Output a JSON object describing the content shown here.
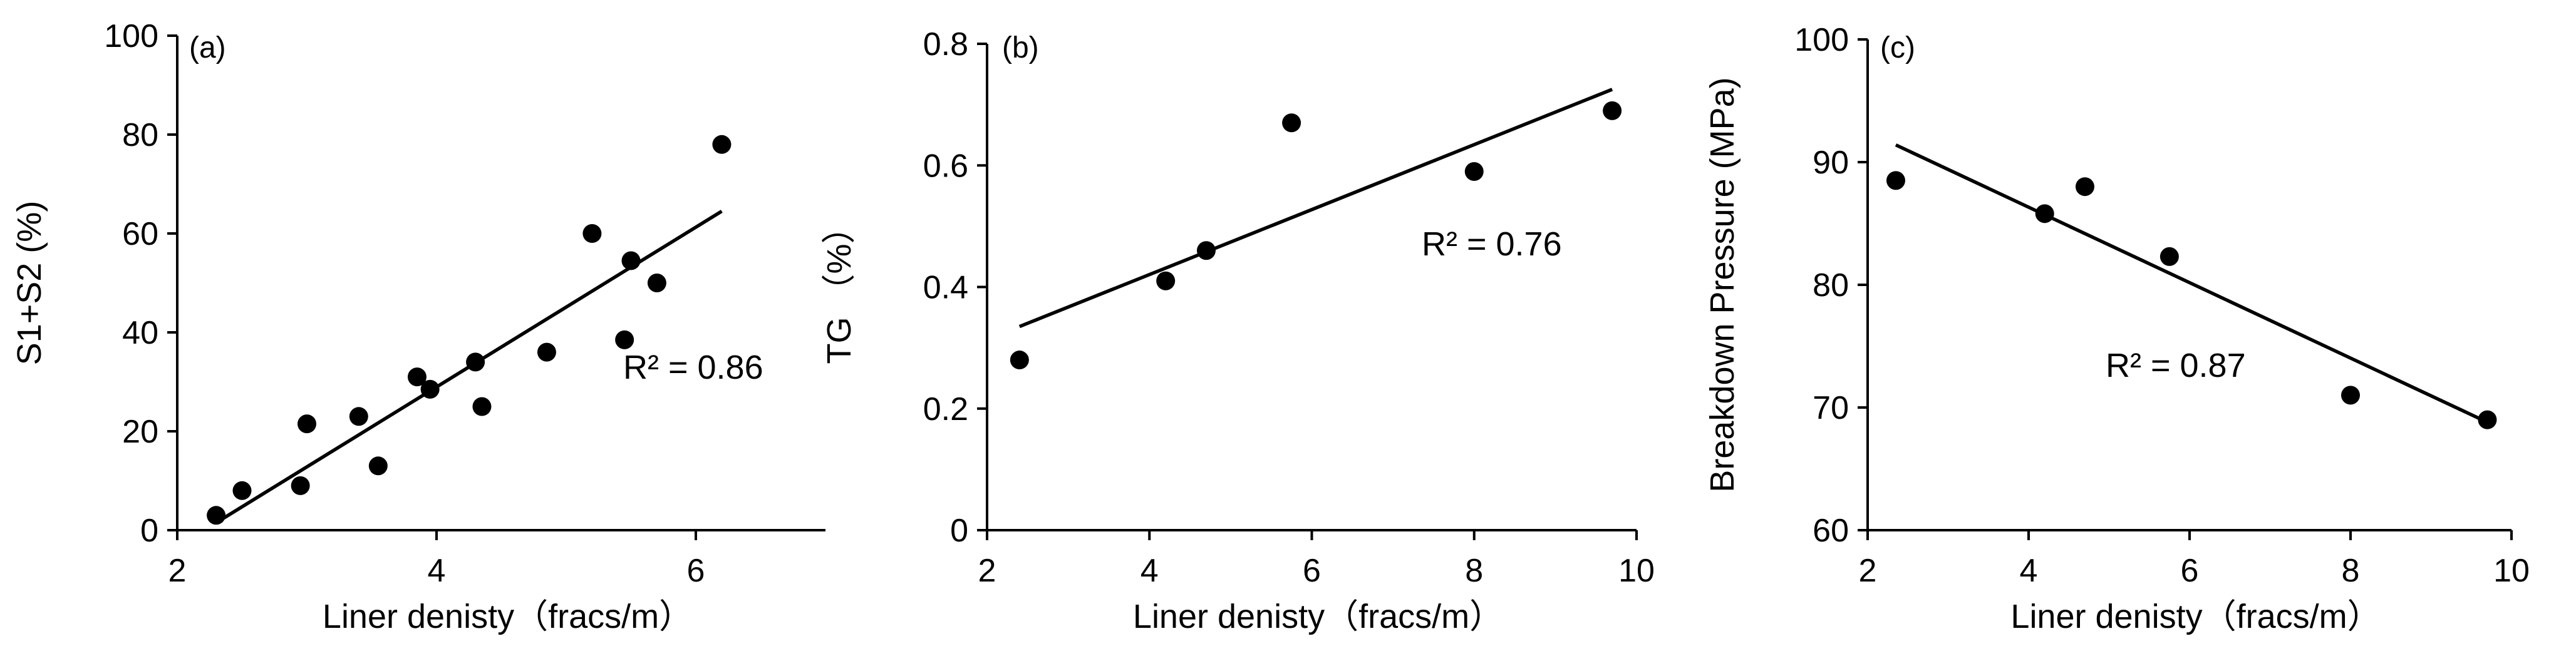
{
  "chart_data": [
    {
      "type": "scatter",
      "panel_label": "(a)",
      "xlabel": "Liner denisty（fracs/m）",
      "ylabel": "S1+S2 (%)",
      "xlim": [
        2,
        7
      ],
      "ylim": [
        0,
        100
      ],
      "xticks": [
        2,
        4,
        6
      ],
      "yticks": [
        0,
        20,
        40,
        60,
        80,
        100
      ],
      "x": [
        2.3,
        2.5,
        2.95,
        3.0,
        3.4,
        3.55,
        3.85,
        3.95,
        4.3,
        4.35,
        4.85,
        5.2,
        5.45,
        5.5,
        5.7,
        6.2
      ],
      "y": [
        3,
        8,
        9,
        21.5,
        23,
        13,
        31,
        28.5,
        34,
        25,
        36,
        60,
        38.5,
        54.5,
        50,
        78
      ],
      "trendline": {
        "x": [
          2.3,
          6.2
        ],
        "y": [
          1.5,
          64.5
        ]
      },
      "annotation": "R² = 0.86",
      "grid": false,
      "legend": "none"
    },
    {
      "type": "scatter",
      "panel_label": "(b)",
      "xlabel": "Liner denisty（fracs/m）",
      "ylabel": "TG （%）",
      "xlim": [
        2,
        10
      ],
      "ylim": [
        0,
        0.8
      ],
      "xticks": [
        2,
        4,
        6,
        8,
        10
      ],
      "yticks": [
        0,
        0.2,
        0.4,
        0.6,
        0.8
      ],
      "x": [
        2.4,
        4.2,
        4.7,
        5.75,
        8.0,
        9.7
      ],
      "y": [
        0.28,
        0.41,
        0.46,
        0.67,
        0.59,
        0.69
      ],
      "trendline": {
        "x": [
          2.4,
          9.7
        ],
        "y": [
          0.335,
          0.725
        ]
      },
      "annotation": "R² = 0.76",
      "grid": false,
      "legend": "none"
    },
    {
      "type": "scatter",
      "panel_label": "(c)",
      "xlabel": "Liner denisty（fracs/m）",
      "ylabel": "Breakdown Pressure (MPa)",
      "xlim": [
        2,
        10
      ],
      "ylim": [
        60,
        100
      ],
      "xticks": [
        2,
        4,
        6,
        8,
        10
      ],
      "yticks": [
        60,
        70,
        80,
        90,
        100
      ],
      "x": [
        2.35,
        4.2,
        4.7,
        5.75,
        8.0,
        9.7
      ],
      "y": [
        88.5,
        85.8,
        88.0,
        82.3,
        71.0,
        69.0
      ],
      "trendline": {
        "x": [
          2.35,
          9.7
        ],
        "y": [
          91.4,
          68.8
        ]
      },
      "annotation": "R² = 0.87",
      "grid": false,
      "legend": "none"
    }
  ]
}
